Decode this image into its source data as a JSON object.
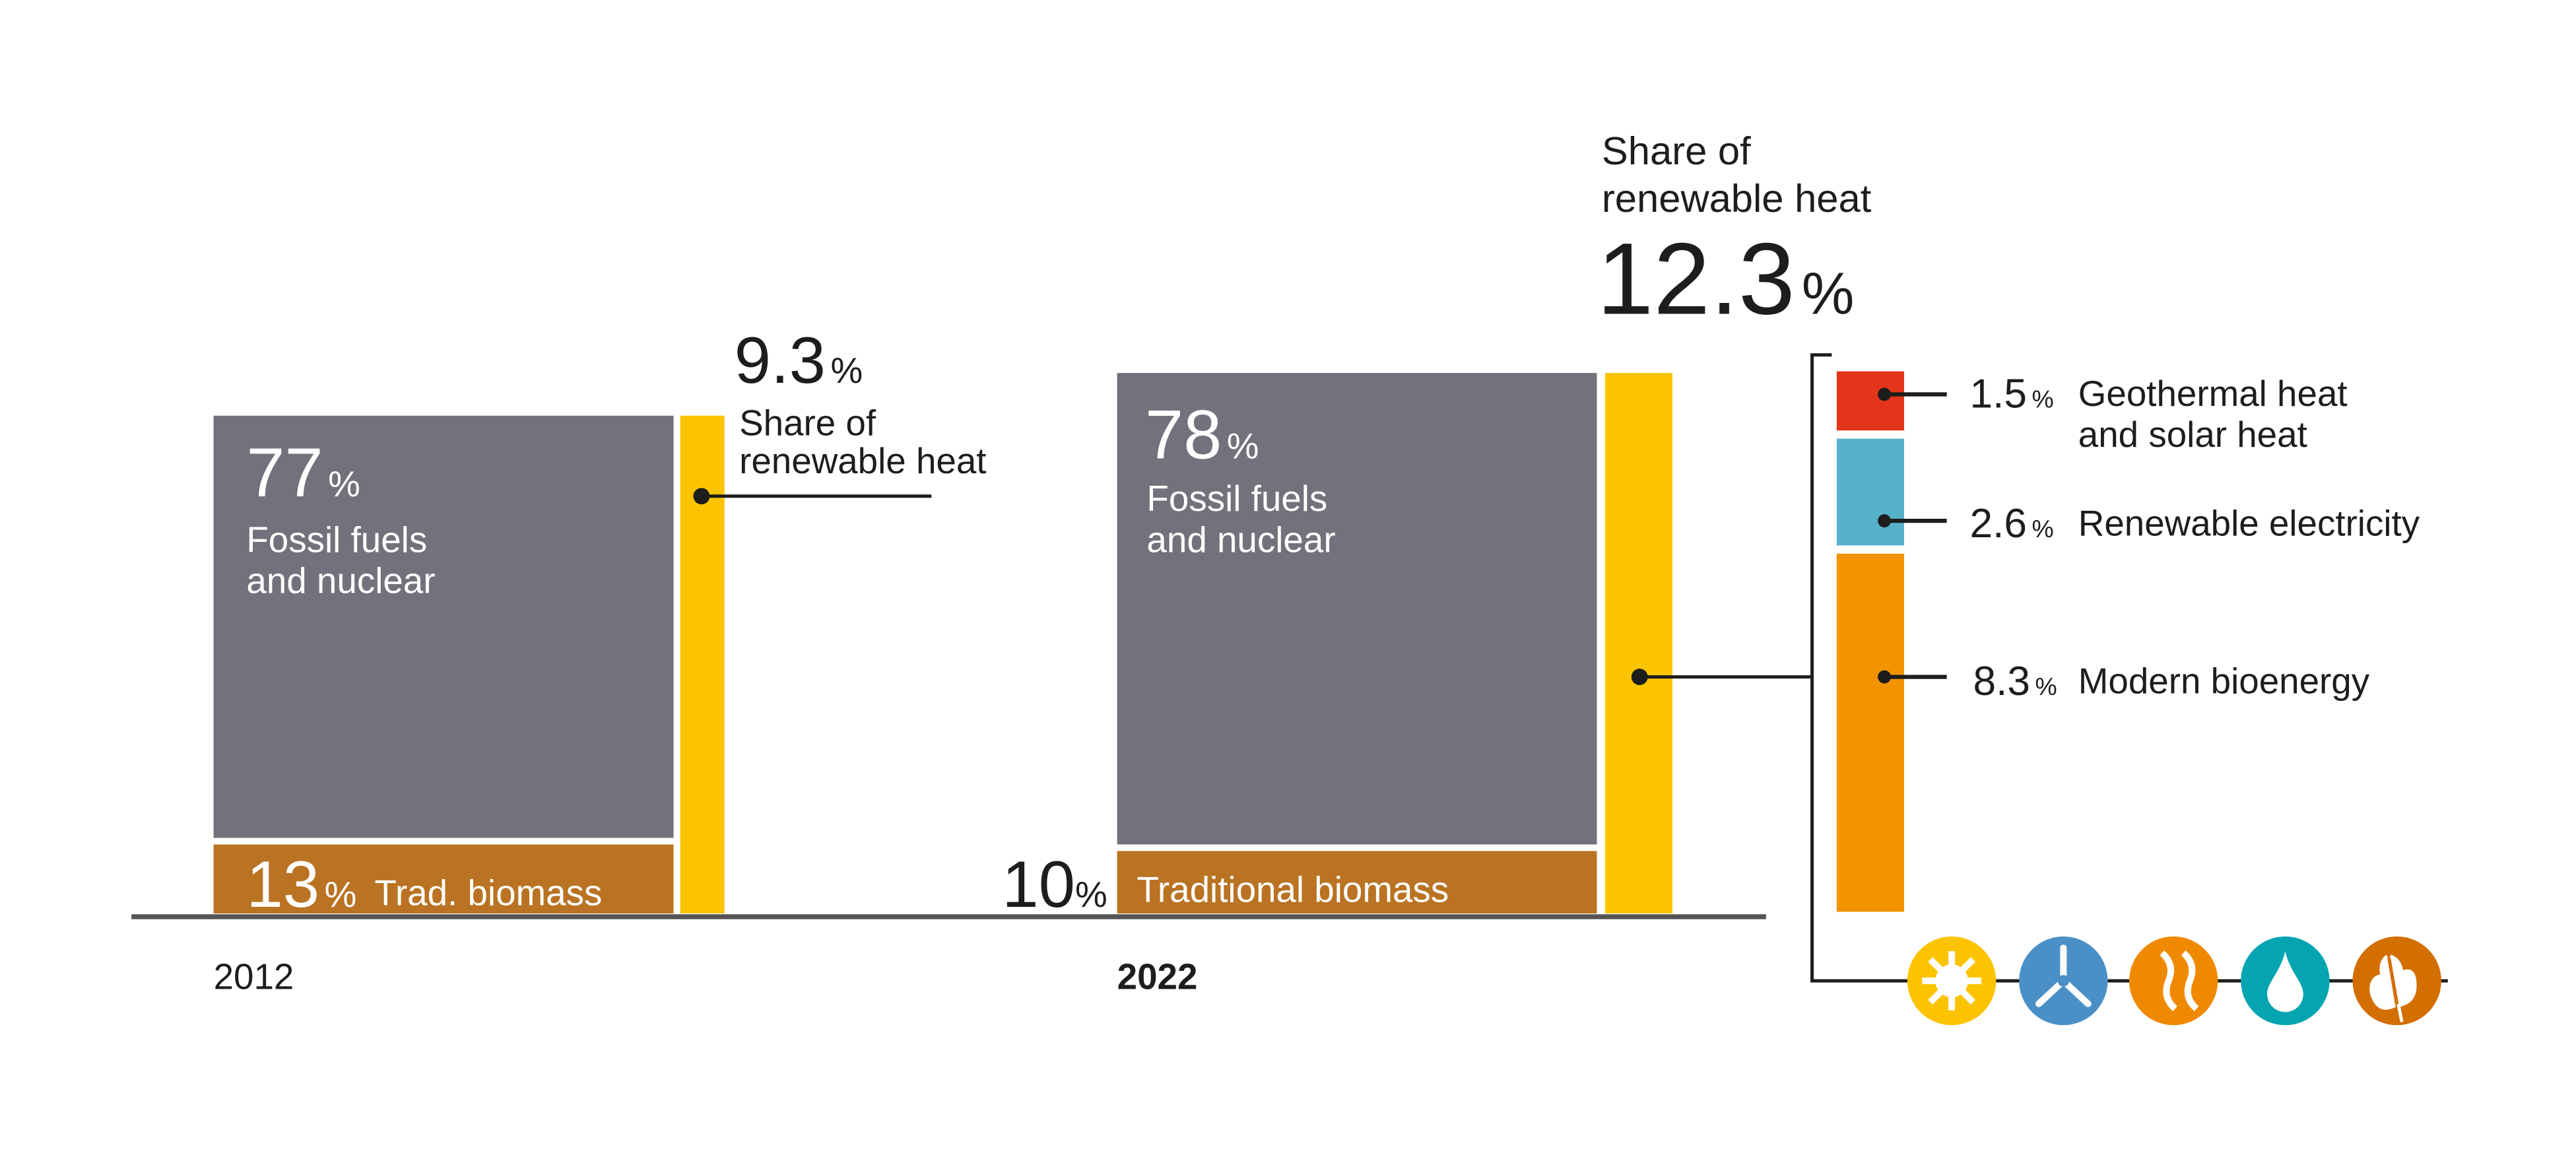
{
  "chart_data": {
    "type": "bar",
    "title": "Share of renewable heat",
    "categories": [
      "2012",
      "2022"
    ],
    "series": [
      {
        "name": "Fossil fuels and nuclear",
        "values": [
          77,
          78
        ],
        "unit": "%"
      },
      {
        "name": "Traditional biomass",
        "values": [
          13,
          10
        ],
        "unit": "%"
      },
      {
        "name": "Share of renewable heat",
        "values": [
          9.3,
          12.3
        ],
        "unit": "%"
      }
    ],
    "breakdown_2022": [
      {
        "name": "Geothermal heat and solar heat",
        "value": 1.5,
        "color": "#e3351a"
      },
      {
        "name": "Renewable electricity",
        "value": 2.6,
        "color": "#55b1ca"
      },
      {
        "name": "Modern bioenergy",
        "value": 8.3,
        "color": "#f29400"
      }
    ],
    "colors": {
      "fossil": "#74717c",
      "biomass": "#b97322",
      "renewable": "#fcc400"
    }
  },
  "labels": {
    "y2012": {
      "year": "2012",
      "fossil_value": "77",
      "fossil_l1": "Fossil fuels",
      "fossil_l2": "and nuclear",
      "biomass_value": "13",
      "biomass_label": "Trad. biomass",
      "renew_value": "9.3",
      "renew_l1": "Share of",
      "renew_l2": "renewable heat"
    },
    "y2022": {
      "year": "2022",
      "fossil_value": "78",
      "fossil_l1": "Fossil fuels",
      "fossil_l2": "and nuclear",
      "biomass_value": "10",
      "biomass_label": "Traditional biomass",
      "renew_value": "12.3",
      "renew_l1": "Share of",
      "renew_l2": "renewable heat"
    },
    "pct": "%",
    "breakdown": [
      {
        "value": "1.5",
        "l1": "Geothermal heat",
        "l2": "and solar heat"
      },
      {
        "value": "2.6",
        "l1": "Renewable electricity"
      },
      {
        "value": "8.3",
        "l1": "Modern bioenergy"
      }
    ]
  },
  "icons": [
    {
      "name": "sun-icon",
      "color": "#fcc400"
    },
    {
      "name": "wind-turbine-icon",
      "color": "#4a90c6"
    },
    {
      "name": "heat-waves-icon",
      "color": "#ef8a00"
    },
    {
      "name": "water-drop-icon",
      "color": "#04a4b1"
    },
    {
      "name": "leaf-icon",
      "color": "#d36e00"
    }
  ]
}
